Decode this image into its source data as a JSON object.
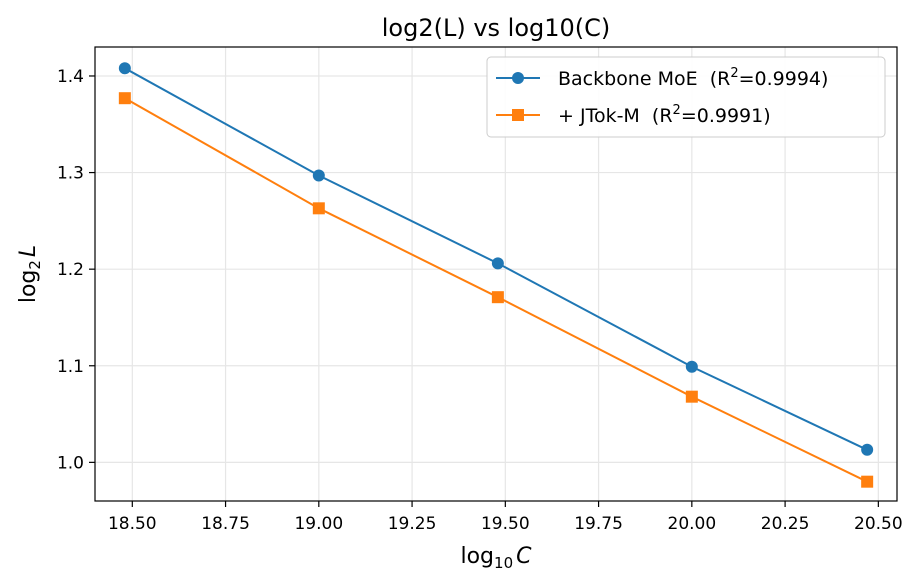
{
  "chart_data": {
    "type": "line",
    "title": "log2(L) vs log10(C)",
    "xlabel": {
      "base": "log",
      "sub": "10",
      "var": "C"
    },
    "ylabel": {
      "base": "log",
      "sub": "2",
      "var": "L"
    },
    "xlim": [
      18.4,
      20.55
    ],
    "ylim": [
      0.96,
      1.43
    ],
    "xticks": [
      18.5,
      18.75,
      19.0,
      19.25,
      19.5,
      19.75,
      20.0,
      20.25,
      20.5
    ],
    "xtick_labels": [
      "18.50",
      "18.75",
      "19.00",
      "19.25",
      "19.50",
      "19.75",
      "20.00",
      "20.25",
      "20.50"
    ],
    "yticks": [
      1.0,
      1.1,
      1.2,
      1.3,
      1.4
    ],
    "ytick_labels": [
      "1.0",
      "1.1",
      "1.2",
      "1.3",
      "1.4"
    ],
    "grid": true,
    "legend_position": "top-right",
    "x": [
      18.48,
      19.0,
      19.48,
      20.0,
      20.47
    ],
    "series": [
      {
        "name": "Backbone MoE",
        "r2_label": "0.9994",
        "marker": "circle",
        "color": "#1f77b4",
        "values": [
          1.408,
          1.297,
          1.206,
          1.099,
          1.013
        ]
      },
      {
        "name": "+ JTok-M",
        "r2_label": "0.9991",
        "marker": "square",
        "color": "#ff7f0e",
        "values": [
          1.377,
          1.263,
          1.171,
          1.068,
          0.98
        ]
      }
    ]
  }
}
